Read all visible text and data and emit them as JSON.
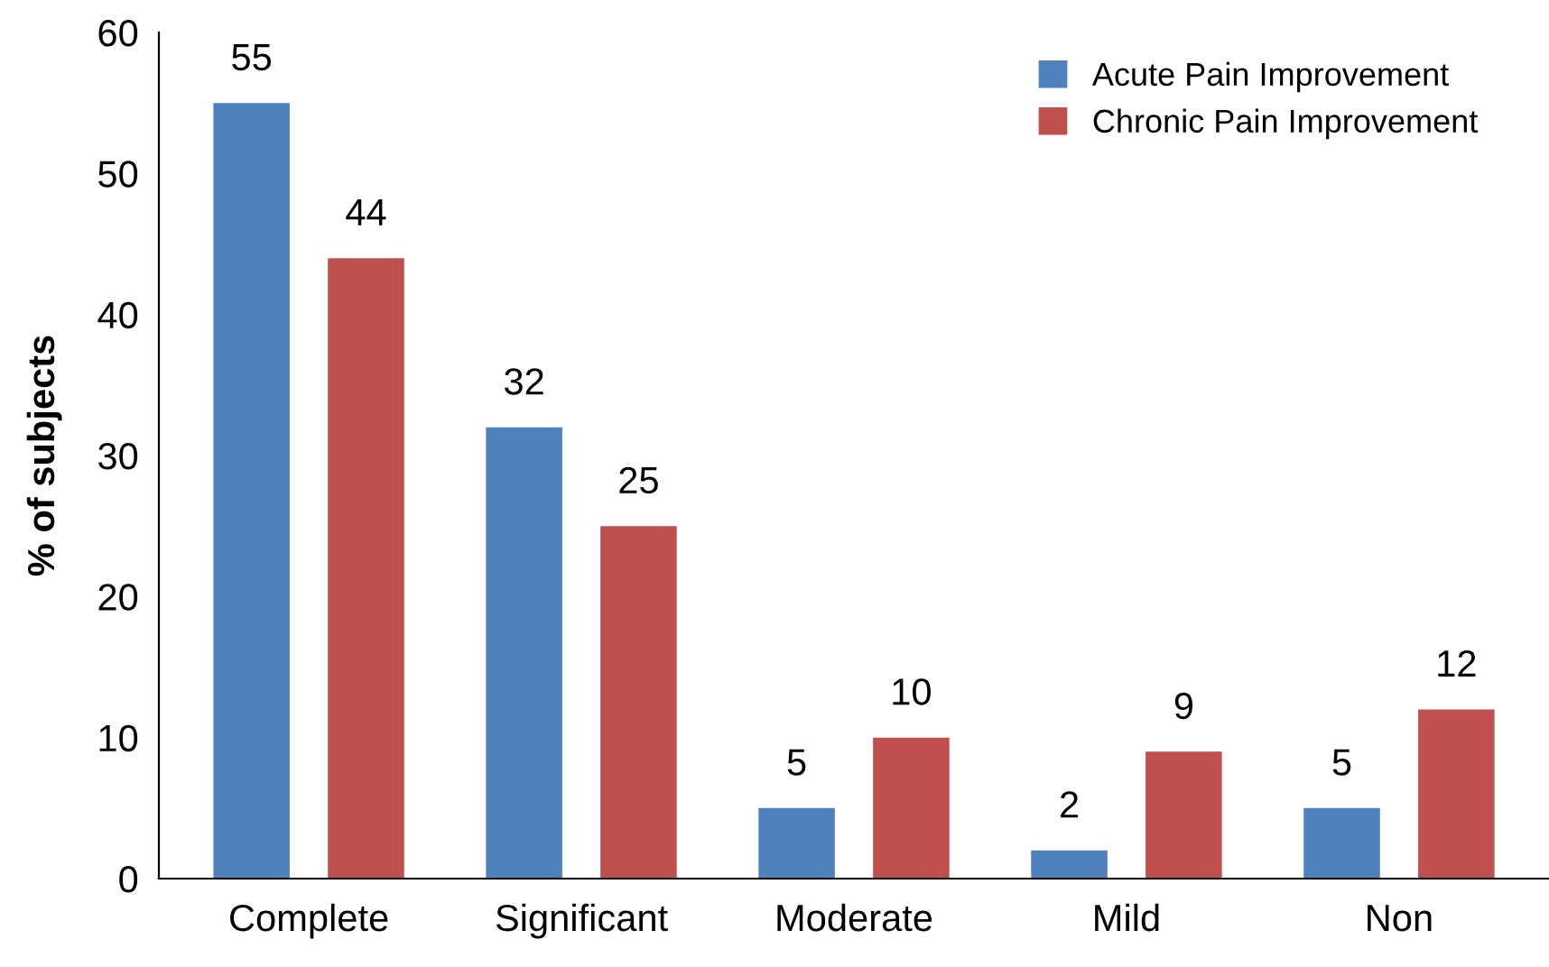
{
  "chart_data": {
    "type": "bar",
    "ylabel": "% of subjects",
    "categories": [
      "Complete",
      "Significant",
      "Moderate",
      "Mild",
      "Non"
    ],
    "series": [
      {
        "name": "Acute Pain Improvement",
        "color": "#4f81bd",
        "values": [
          55,
          32,
          5,
          2,
          5
        ]
      },
      {
        "name": "Chronic Pain Improvement",
        "color": "#c0504d",
        "values": [
          44,
          25,
          10,
          9,
          12
        ]
      }
    ],
    "ylim": [
      0,
      60
    ],
    "yticks": [
      0,
      10,
      20,
      30,
      40,
      50,
      60
    ],
    "grid": false,
    "legend": "top right",
    "data_labels": true
  }
}
